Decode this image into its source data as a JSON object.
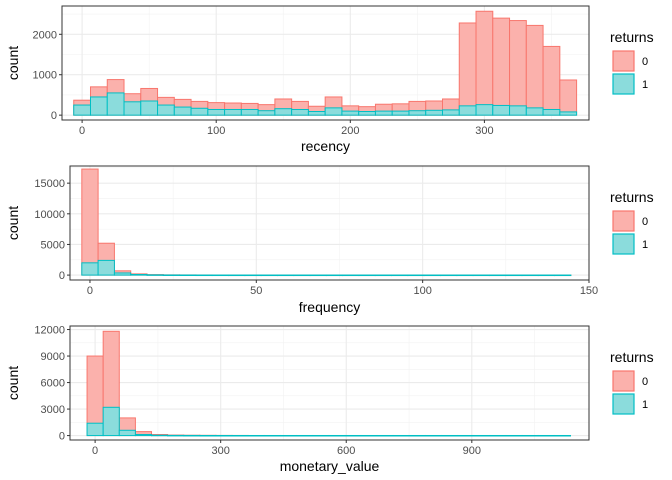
{
  "chart_data": [
    {
      "type": "bar",
      "xlabel": "recency",
      "ylabel": "count",
      "xlim": [
        -15,
        378
      ],
      "ylim": [
        -120,
        2700
      ],
      "xticks": [
        0,
        100,
        200,
        300
      ],
      "yticks": [
        0,
        1000,
        2000
      ],
      "bin_width": 12.5,
      "x": [
        0,
        12.5,
        25,
        37.5,
        50,
        62.5,
        75,
        87.5,
        100,
        112.5,
        125,
        137.5,
        150,
        162.5,
        175,
        187.5,
        200,
        212.5,
        225,
        237.5,
        250,
        262.5,
        275,
        287.5,
        300,
        312.5,
        325,
        337.5,
        350,
        362.5
      ],
      "series": [
        {
          "name": "0",
          "values": [
            370,
            700,
            880,
            530,
            660,
            440,
            390,
            340,
            310,
            300,
            290,
            260,
            400,
            340,
            220,
            450,
            230,
            210,
            270,
            280,
            340,
            350,
            400,
            2280,
            2570,
            2400,
            2340,
            2220,
            1700,
            870
          ]
        },
        {
          "name": "1",
          "values": [
            250,
            450,
            550,
            330,
            350,
            250,
            200,
            170,
            140,
            140,
            140,
            110,
            160,
            140,
            90,
            180,
            100,
            90,
            100,
            100,
            110,
            120,
            130,
            230,
            260,
            240,
            230,
            180,
            140,
            80
          ]
        }
      ],
      "legend_title": "returns",
      "legend_position": "right",
      "colors": {
        "0": "#F8766D",
        "1": "#00BFC4"
      },
      "fills": {
        "0": "#FBB1AC",
        "1": "#8BDCDC"
      }
    },
    {
      "type": "bar",
      "xlabel": "frequency",
      "ylabel": "count",
      "xlim": [
        -6,
        150
      ],
      "ylim": [
        -800,
        17800
      ],
      "xticks": [
        0,
        50,
        100,
        150
      ],
      "yticks": [
        0,
        5000,
        10000,
        15000
      ],
      "bin_width": 4.9,
      "x": [
        0,
        4.9,
        9.8,
        14.7,
        19.6,
        24.5,
        29.4,
        34.3,
        39.2,
        44.1,
        49,
        53.9,
        58.8,
        63.7,
        68.6,
        73.5,
        78.4,
        83.3,
        88.2,
        93.1,
        98,
        102.9,
        107.8,
        112.7,
        117.6,
        122.5,
        127.4,
        132.3,
        137.2,
        142.1
      ],
      "series": [
        {
          "name": "0",
          "values": [
            17300,
            5200,
            700,
            200,
            80,
            40,
            30,
            20,
            15,
            10,
            10,
            10,
            10,
            10,
            10,
            10,
            10,
            10,
            10,
            10,
            10,
            10,
            10,
            10,
            10,
            10,
            10,
            10,
            10,
            10
          ]
        },
        {
          "name": "1",
          "values": [
            2000,
            2400,
            350,
            100,
            40,
            20,
            15,
            10,
            10,
            10,
            10,
            10,
            10,
            10,
            10,
            10,
            10,
            10,
            10,
            10,
            10,
            10,
            10,
            10,
            10,
            10,
            10,
            10,
            10,
            10
          ]
        }
      ],
      "legend_title": "returns",
      "legend_position": "right",
      "colors": {
        "0": "#F8766D",
        "1": "#00BFC4"
      },
      "fills": {
        "0": "#FBB1AC",
        "1": "#8BDCDC"
      }
    },
    {
      "type": "bar",
      "xlabel": "monetary_value",
      "ylabel": "count",
      "xlim": [
        -60,
        1180
      ],
      "ylim": [
        -500,
        12400
      ],
      "xticks": [
        0,
        300,
        600,
        900
      ],
      "yticks": [
        0,
        3000,
        6000,
        9000,
        12000
      ],
      "bin_width": 38.5,
      "x": [
        0,
        38.5,
        77,
        115.5,
        154,
        192.5,
        231,
        269.5,
        308,
        346.5,
        385,
        423.5,
        462,
        500.5,
        539,
        577.5,
        616,
        654.5,
        693,
        731.5,
        770,
        808.5,
        847,
        885.5,
        924,
        962.5,
        1001,
        1039.5,
        1078,
        1116.5
      ],
      "series": [
        {
          "name": "0",
          "values": [
            9000,
            11800,
            2000,
            450,
            120,
            60,
            40,
            30,
            20,
            15,
            10,
            10,
            10,
            10,
            10,
            10,
            10,
            10,
            10,
            10,
            10,
            10,
            10,
            10,
            10,
            10,
            10,
            10,
            10,
            10
          ]
        },
        {
          "name": "1",
          "values": [
            1400,
            3200,
            600,
            120,
            40,
            20,
            15,
            10,
            10,
            10,
            10,
            10,
            10,
            10,
            10,
            10,
            10,
            10,
            10,
            10,
            10,
            10,
            10,
            10,
            10,
            10,
            10,
            10,
            10,
            10
          ]
        }
      ],
      "legend_title": "returns",
      "legend_position": "right",
      "colors": {
        "0": "#F8766D",
        "1": "#00BFC4"
      },
      "fills": {
        "0": "#FBB1AC",
        "1": "#8BDCDC"
      }
    }
  ]
}
